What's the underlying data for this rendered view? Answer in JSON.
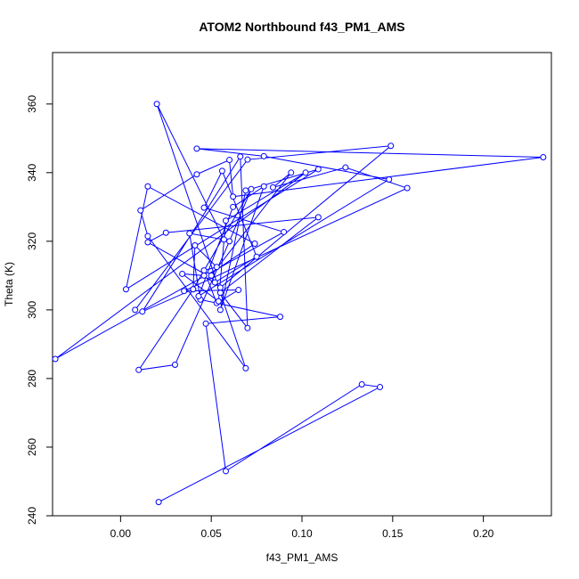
{
  "chart_data": {
    "type": "line",
    "title": "ATOM2 Northbound f43_PM1_AMS",
    "xlabel": "f43_PM1_AMS",
    "ylabel": "Theta (K)",
    "xlim": [
      -0.0375,
      0.2375
    ],
    "ylim": [
      240,
      375
    ],
    "xticks": [
      0.0,
      0.05,
      0.1,
      0.15,
      0.2
    ],
    "xtick_labels": [
      "0.00",
      "0.05",
      "0.10",
      "0.15",
      "0.20"
    ],
    "yticks": [
      240,
      260,
      280,
      300,
      320,
      340,
      360
    ],
    "ytick_labels": [
      "240",
      "260",
      "280",
      "300",
      "320",
      "340",
      "360"
    ],
    "grid": false,
    "legend": "none",
    "color": "#0000ff",
    "series": [
      {
        "marker": "open-circle",
        "x": [
          0.021,
          0.143,
          0.133,
          0.058,
          0.047,
          0.088,
          0.044,
          0.038,
          0.057,
          0.02,
          0.069,
          0.015,
          0.011,
          0.042,
          0.06,
          0.062,
          0.233,
          0.042,
          0.079,
          0.148,
          0.043,
          0.062,
          0.079,
          0.055,
          0.069,
          0.109,
          0.003,
          0.015,
          0.074,
          0.048,
          0.015,
          0.025,
          0.109,
          0.055,
          0.07,
          0.066,
          0.012,
          0.04,
          0.072,
          0.06,
          0.03,
          0.01,
          0.04,
          0.041,
          0.053,
          0.046,
          0.053,
          0.065,
          0.035,
          0.158,
          0.124,
          0.084,
          0.094,
          0.05,
          0.052,
          0.075,
          0.056,
          0.046,
          0.09,
          -0.036,
          0.102,
          0.058,
          0.054,
          0.034,
          0.046,
          0.055,
          0.149,
          0.07,
          0.008
        ],
        "y": [
          244,
          277.5,
          278.3,
          253,
          296,
          298,
          303,
          322.3,
          320.5,
          360,
          283,
          321.5,
          329,
          339.5,
          343.7,
          333,
          344.5,
          347,
          344.8,
          338,
          304,
          330,
          336,
          300,
          334.8,
          341,
          306,
          336,
          319.3,
          310,
          319.7,
          322.5,
          327,
          305,
          294.7,
          344.7,
          299.5,
          306,
          335.2,
          320,
          284,
          282.5,
          306,
          318.8,
          312.5,
          311.5,
          302,
          305.8,
          305.5,
          335.5,
          341.5,
          335.7,
          340,
          310,
          308,
          315.5,
          340.5,
          329.8,
          322.7,
          285.7,
          340,
          326,
          302.5,
          310.5,
          310,
          306.5,
          347.8,
          343.8,
          300
        ]
      }
    ]
  }
}
